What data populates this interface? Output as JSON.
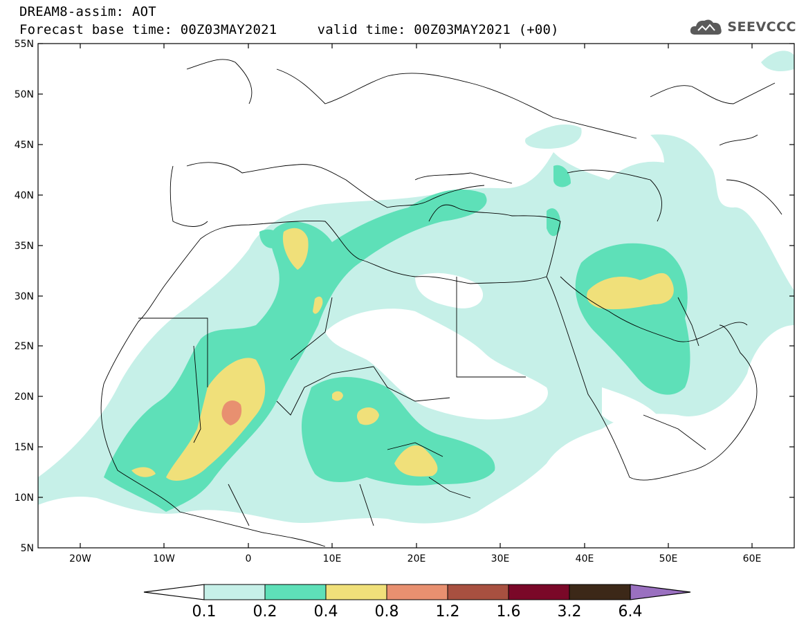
{
  "header": {
    "line1": "DREAM8-assim: AOT",
    "line2": "Forecast base time: 00Z03MAY2021     valid time: 00Z03MAY2021 (+00)",
    "logo_text": "SEEVCCC"
  },
  "map": {
    "lat_labels": [
      "55N",
      "50N",
      "45N",
      "40N",
      "35N",
      "30N",
      "25N",
      "20N",
      "15N",
      "10N",
      "5N"
    ],
    "lon_labels": [
      "20W",
      "10W",
      "0",
      "10E",
      "20E",
      "30E",
      "40E",
      "50E",
      "60E"
    ],
    "colors": {
      "c01": "#c6f0e8",
      "c02": "#5ee0b8",
      "c04": "#f0e07a",
      "c08": "#e89070",
      "border": "#000000"
    }
  },
  "colorbar": {
    "labels": [
      "0.1",
      "0.2",
      "0.4",
      "0.8",
      "1.2",
      "1.6",
      "3.2",
      "6.4"
    ],
    "colors": [
      "#c6f0e8",
      "#5ee0b8",
      "#f0e07a",
      "#e89070",
      "#a85040",
      "#7a0828",
      "#3c2818",
      "#9a70c0"
    ]
  }
}
